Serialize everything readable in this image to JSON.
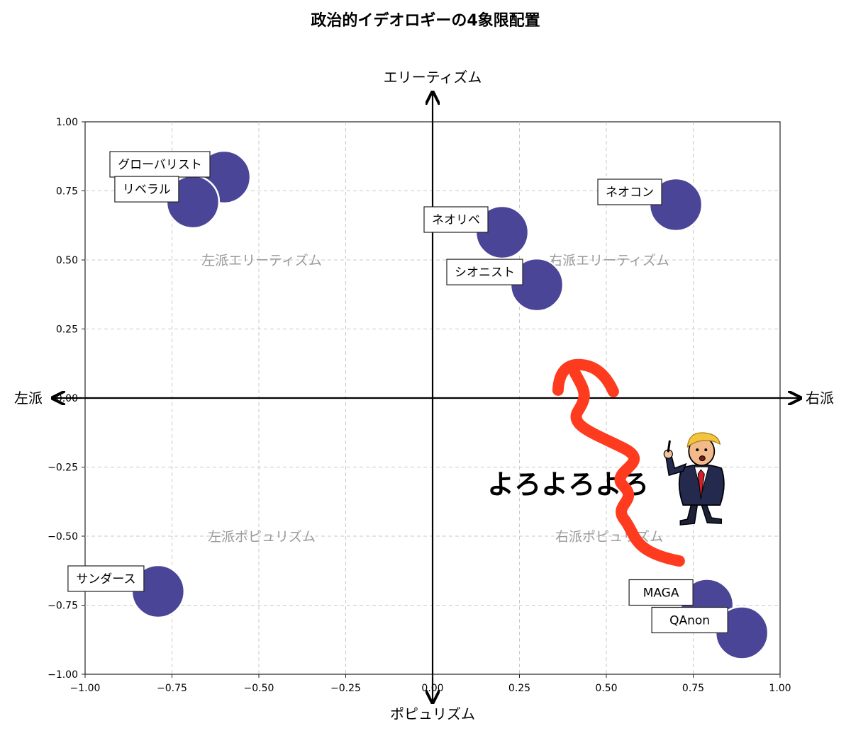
{
  "chart_data": {
    "type": "scatter",
    "title": "政治的イデオロギーの4象限配置",
    "xlabel_left": "左派",
    "xlabel_right": "右派",
    "ylabel_top": "エリーティズム",
    "ylabel_bottom": "ポピュリズム",
    "xlim": [
      -1.0,
      1.0
    ],
    "ylim": [
      -1.0,
      1.0
    ],
    "xticks": [
      "−1.00",
      "−0.75",
      "−0.50",
      "−0.25",
      "0.00",
      "0.25",
      "0.50",
      "0.75",
      "1.00"
    ],
    "yticks": [
      "−1.00",
      "−0.75",
      "−0.50",
      "−0.25",
      "0.00",
      "0.25",
      "0.50",
      "0.75",
      "1.00"
    ],
    "xtick_values": [
      -1.0,
      -0.75,
      -0.5,
      -0.25,
      0.0,
      0.25,
      0.5,
      0.75,
      1.0
    ],
    "ytick_values": [
      -1.0,
      -0.75,
      -0.5,
      -0.25,
      0.0,
      0.25,
      0.5,
      0.75,
      1.0
    ],
    "grid": true,
    "marker_color": "#4b4597",
    "quadrant_labels": [
      {
        "text": "左派エリーティズム",
        "x": -0.5,
        "y": 0.5
      },
      {
        "text": "右派エリーティズム",
        "x": 0.5,
        "y": 0.5
      },
      {
        "text": "左派ポピュリズム",
        "x": -0.5,
        "y": -0.5
      },
      {
        "text": "右派ポピュリズム",
        "x": 0.5,
        "y": -0.5
      }
    ],
    "points": [
      {
        "label": "グローバリスト",
        "x": -0.6,
        "y": 0.8
      },
      {
        "label": "リベラル",
        "x": -0.69,
        "y": 0.71
      },
      {
        "label": "ネオリベ",
        "x": 0.2,
        "y": 0.6
      },
      {
        "label": "シオニスト",
        "x": 0.3,
        "y": 0.41
      },
      {
        "label": "ネオコン",
        "x": 0.7,
        "y": 0.7
      },
      {
        "label": "サンダース",
        "x": -0.79,
        "y": -0.7
      },
      {
        "label": "MAGA",
        "x": 0.79,
        "y": -0.75
      },
      {
        "label": "QAnon",
        "x": 0.89,
        "y": -0.85
      }
    ],
    "annotations": [
      {
        "text": "よろよろよろ",
        "x": 0.39,
        "y": -0.31
      },
      {
        "icon": "trump-caricature-icon",
        "x": 0.77,
        "y": -0.29
      },
      {
        "icon": "red-wavy-arrow-icon",
        "arrow_color": "#ff3b1f",
        "from": [
          0.71,
          -0.59
        ],
        "to": [
          0.41,
          0.09
        ]
      }
    ]
  }
}
